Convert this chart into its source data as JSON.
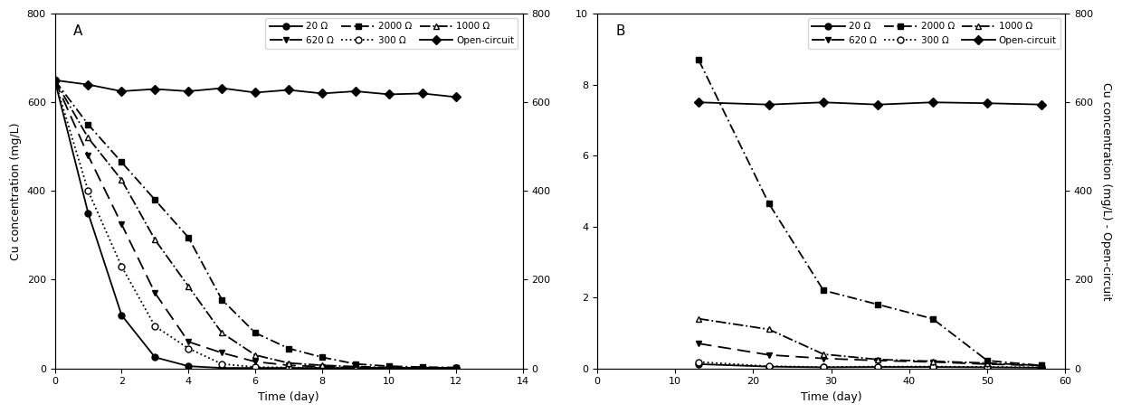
{
  "panel_A": {
    "label": "A",
    "xlabel": "Time (day)",
    "ylabel_left": "Cu concentration (mg/L)",
    "xlim": [
      0,
      14
    ],
    "ylim_left": [
      0,
      800
    ],
    "ylim_right": [
      0,
      800
    ],
    "xticks": [
      0,
      2,
      4,
      6,
      8,
      10,
      12,
      14
    ],
    "yticks": [
      0,
      200,
      400,
      600,
      800
    ],
    "series": [
      {
        "label": "20 Ω",
        "x": [
          0,
          1,
          2,
          3,
          4,
          5,
          6,
          7,
          8,
          9,
          10,
          11,
          12
        ],
        "y": [
          650,
          350,
          120,
          25,
          5,
          1,
          1,
          1,
          1,
          1,
          1,
          1,
          1
        ],
        "linestyle": "-",
        "marker": "o",
        "markerfacecolor": "black",
        "dashes": null
      },
      {
        "label": "300 Ω",
        "x": [
          0,
          1,
          2,
          3,
          4,
          5,
          6,
          7,
          8,
          9,
          10,
          11,
          12
        ],
        "y": [
          650,
          400,
          230,
          95,
          45,
          10,
          3,
          2,
          1,
          1,
          1,
          1,
          1
        ],
        "linestyle": ":",
        "marker": "o",
        "markerfacecolor": "white",
        "dashes": null
      },
      {
        "label": "620 Ω",
        "x": [
          0,
          1,
          2,
          3,
          4,
          5,
          6,
          7,
          8,
          9,
          10,
          11,
          12
        ],
        "y": [
          650,
          480,
          325,
          170,
          60,
          35,
          15,
          7,
          4,
          2,
          1,
          1,
          1
        ],
        "linestyle": "--",
        "marker": "v",
        "markerfacecolor": "black",
        "dashes": [
          8,
          4
        ]
      },
      {
        "label": "1000 Ω",
        "x": [
          0,
          1,
          2,
          3,
          4,
          5,
          6,
          7,
          8,
          9,
          10,
          11,
          12
        ],
        "y": [
          650,
          520,
          425,
          290,
          185,
          80,
          30,
          12,
          7,
          4,
          2,
          1,
          1
        ],
        "linestyle": "-.",
        "marker": "^",
        "markerfacecolor": "white",
        "dashes": null
      },
      {
        "label": "2000 Ω",
        "x": [
          0,
          1,
          2,
          3,
          4,
          5,
          6,
          7,
          8,
          9,
          10,
          11,
          12
        ],
        "y": [
          650,
          550,
          465,
          380,
          295,
          155,
          80,
          45,
          25,
          10,
          5,
          3,
          2
        ],
        "linestyle": "--",
        "marker": "s",
        "markerfacecolor": "black",
        "dashes": [
          6,
          2,
          1,
          2
        ]
      },
      {
        "label": "Open-circuit",
        "x": [
          0,
          1,
          2,
          3,
          4,
          5,
          6,
          7,
          8,
          9,
          10,
          11,
          12
        ],
        "y": [
          650,
          640,
          625,
          630,
          625,
          632,
          622,
          628,
          620,
          625,
          618,
          620,
          612
        ],
        "linestyle": "-",
        "marker": "D",
        "markerfacecolor": "black",
        "dashes": null
      }
    ]
  },
  "panel_B": {
    "label": "B",
    "xlabel": "Time (day)",
    "ylabel_right": "Cu concentration (mg/L) - Open-circuit",
    "xlim": [
      0,
      60
    ],
    "ylim_left": [
      0,
      10
    ],
    "ylim_right": [
      0,
      800
    ],
    "xticks": [
      0,
      10,
      20,
      30,
      40,
      50,
      60
    ],
    "yticks_left": [
      0,
      2,
      4,
      6,
      8,
      10
    ],
    "yticks_right": [
      0,
      200,
      400,
      600,
      800
    ],
    "series": [
      {
        "label": "20 Ω",
        "x": [
          13,
          22,
          29,
          36,
          43,
          50,
          57
        ],
        "y": [
          0.12,
          0.05,
          0.03,
          0.04,
          0.04,
          0.03,
          0.02
        ],
        "linestyle": "-",
        "marker": "o",
        "markerfacecolor": "black",
        "dashes": null
      },
      {
        "label": "300 Ω",
        "x": [
          13,
          22,
          29,
          36,
          43,
          50,
          57
        ],
        "y": [
          0.18,
          0.06,
          0.04,
          0.05,
          0.05,
          0.04,
          0.03
        ],
        "linestyle": ":",
        "marker": "o",
        "markerfacecolor": "white",
        "dashes": null
      },
      {
        "label": "620 Ω",
        "x": [
          13,
          22,
          29,
          36,
          43,
          50,
          57
        ],
        "y": [
          0.7,
          0.38,
          0.28,
          0.22,
          0.18,
          0.12,
          0.08
        ],
        "linestyle": "--",
        "marker": "v",
        "markerfacecolor": "black",
        "dashes": [
          8,
          4
        ]
      },
      {
        "label": "1000 Ω",
        "x": [
          13,
          22,
          29,
          36,
          43,
          50,
          57
        ],
        "y": [
          1.4,
          1.1,
          0.4,
          0.25,
          0.2,
          0.15,
          0.08
        ],
        "linestyle": "-.",
        "marker": "^",
        "markerfacecolor": "white",
        "dashes": null
      },
      {
        "label": "2000 Ω",
        "x": [
          13,
          22,
          29,
          36,
          43,
          50,
          57
        ],
        "y": [
          8.7,
          4.65,
          2.2,
          1.8,
          1.4,
          0.22,
          0.08
        ],
        "linestyle": "--",
        "marker": "s",
        "markerfacecolor": "black",
        "dashes": [
          6,
          2,
          1,
          2
        ]
      },
      {
        "label": "Open-circuit",
        "x": [
          13,
          22,
          29,
          36,
          43,
          50,
          57
        ],
        "y_right": [
          600,
          595,
          600,
          595,
          600,
          598,
          595
        ],
        "linestyle": "-",
        "marker": "D",
        "markerfacecolor": "black",
        "dashes": null
      }
    ]
  },
  "legend_order": [
    0,
    2,
    4,
    1,
    3,
    5
  ],
  "linewidth": 1.3,
  "markersize": 5,
  "fontsize_label": 9,
  "fontsize_tick": 8,
  "fontsize_legend": 7.5
}
